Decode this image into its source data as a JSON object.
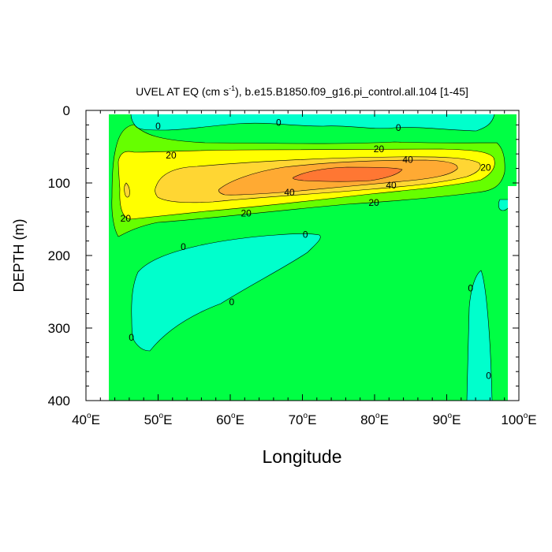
{
  "chart_data": {
    "type": "contour",
    "title_prefix": "UVEL AT EQ (cm s",
    "title_exponent": "-1",
    "title_suffix": "), b.e15.B1850.f09_g16.pi_control.all.104 [1-45]",
    "xlabel": "Longitude",
    "ylabel": "DEPTH (m)",
    "xlim": [
      40,
      100
    ],
    "ylim": [
      0,
      400
    ],
    "y_inverted": true,
    "x_ticks": [
      {
        "value": 40,
        "label": "40",
        "suffix": "E"
      },
      {
        "value": 50,
        "label": "50",
        "suffix": "E"
      },
      {
        "value": 60,
        "label": "60",
        "suffix": "E"
      },
      {
        "value": 70,
        "label": "70",
        "suffix": "E"
      },
      {
        "value": 80,
        "label": "80",
        "suffix": "E"
      },
      {
        "value": 90,
        "label": "90",
        "suffix": "E"
      },
      {
        "value": 100,
        "label": "100",
        "suffix": "E"
      }
    ],
    "degree_symbol": "o",
    "y_ticks": [
      {
        "value": 0,
        "label": "0"
      },
      {
        "value": 100,
        "label": "100"
      },
      {
        "value": 200,
        "label": "200"
      },
      {
        "value": 300,
        "label": "300"
      },
      {
        "value": 400,
        "label": "400"
      }
    ],
    "fill_colors": {
      "below_0": "#00ffcc",
      "0_to_20": "#00ff44",
      "20_to_30": "#66ff00",
      "30_to_40": "#ffff00",
      "40_to_50": "#ffd633",
      "50_to_60": "#ffaa33",
      "60_to_70": "#ff7733"
    },
    "contour_labels": [
      {
        "text": "0",
        "lon": 50.0,
        "depth": 22
      },
      {
        "text": "0",
        "lon": 66.7,
        "depth": 17
      },
      {
        "text": "0",
        "lon": 83.3,
        "depth": 24
      },
      {
        "text": "20",
        "lon": 51.8,
        "depth": 62
      },
      {
        "text": "20",
        "lon": 80.6,
        "depth": 53
      },
      {
        "text": "40",
        "lon": 84.6,
        "depth": 68
      },
      {
        "text": "20",
        "lon": 95.4,
        "depth": 79
      },
      {
        "text": "40",
        "lon": 82.3,
        "depth": 103
      },
      {
        "text": "40",
        "lon": 68.2,
        "depth": 113
      },
      {
        "text": "20",
        "lon": 79.9,
        "depth": 127
      },
      {
        "text": "20",
        "lon": 62.2,
        "depth": 142
      },
      {
        "text": "20",
        "lon": 45.5,
        "depth": 149
      },
      {
        "text": "0",
        "lon": 70.4,
        "depth": 171
      },
      {
        "text": "0",
        "lon": 53.5,
        "depth": 188
      },
      {
        "text": "0",
        "lon": 60.2,
        "depth": 264
      },
      {
        "text": "0",
        "lon": 93.3,
        "depth": 245
      },
      {
        "text": "0",
        "lon": 46.3,
        "depth": 313
      },
      {
        "text": "0",
        "lon": 95.8,
        "depth": 366
      }
    ]
  }
}
